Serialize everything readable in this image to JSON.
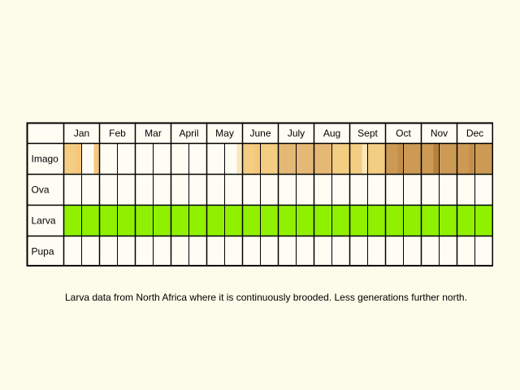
{
  "months": [
    "Jan",
    "Feb",
    "Mar",
    "April",
    "May",
    "June",
    "July",
    "Aug",
    "Sept",
    "Oct",
    "Nov",
    "Dec"
  ],
  "stages": [
    {
      "label": "Imago",
      "colors": [
        "#f2cd82",
        "#fffdf3",
        "#fffdf3",
        "#fffdf3",
        "#fffdf3",
        "#fffdf3",
        "#fffdf3",
        "#fffdf3",
        "#fffdf3",
        "#fffdf3",
        "#f2cd82",
        "#f2cd82",
        "#e5b975",
        "#e5b975",
        "#e5b975",
        "#f2cd82",
        "#f2cd82",
        "#f2cd82",
        "#cc9a55",
        "#cc9a55",
        "#cc9a55",
        "#cc9a55",
        "#cc9a55",
        "#cc9a55",
        "#f2cd82",
        "#f2cd82"
      ],
      "stripes": [
        {
          "cell": 0,
          "color": "#f9c679"
        },
        {
          "cell": 1,
          "color": "#f9c679"
        },
        {
          "cell": 9,
          "color": "#f9e7bf"
        },
        {
          "cell": 10,
          "color": "#f9c679"
        },
        {
          "cell": 16,
          "color": "#f9e7bf"
        },
        {
          "cell": 18,
          "color": "#c48e49"
        },
        {
          "cell": 20,
          "color": "#b5813f"
        },
        {
          "cell": 22,
          "color": "#c48e49"
        }
      ]
    },
    {
      "label": "Ova",
      "colors": [
        "#fffdf3"
      ],
      "stripes": []
    },
    {
      "label": "Larva",
      "colors": [
        "#8ff000"
      ],
      "stripes": []
    },
    {
      "label": "Pupa",
      "colors": [
        "#fffdf3"
      ],
      "stripes": []
    }
  ],
  "caption": "Larva data from North Africa where it is continuously brooded. Less generations further north.",
  "colors": {
    "background": "#fdfbe9",
    "grid": "#000000",
    "empty_cell": "#fffdf3"
  }
}
